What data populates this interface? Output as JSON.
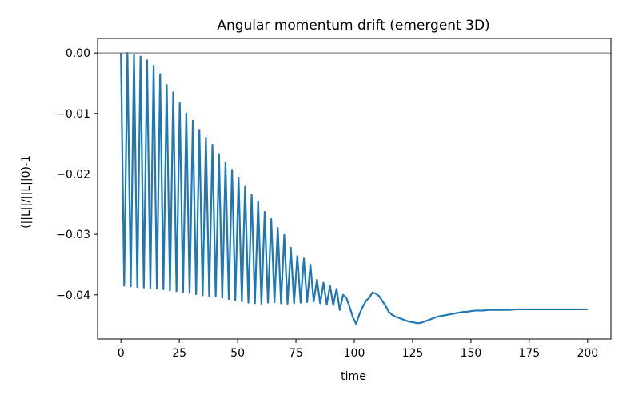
{
  "chart_data": {
    "type": "line",
    "title": "Angular momentum drift (emergent 3D)",
    "xlabel": "time",
    "ylabel": "(||L||/||L||0)-1",
    "xlim": [
      -10,
      210
    ],
    "ylim": [
      -0.0473,
      0.0024
    ],
    "xticks": [
      0,
      25,
      50,
      75,
      100,
      125,
      150,
      175,
      200
    ],
    "xtick_labels": [
      "0",
      "25",
      "50",
      "75",
      "100",
      "125",
      "150",
      "175",
      "200"
    ],
    "yticks": [
      0.0,
      -0.01,
      -0.02,
      -0.03,
      -0.04
    ],
    "ytick_labels": [
      "0.00",
      "−0.01",
      "−0.02",
      "−0.03",
      "−0.04"
    ],
    "reference_line": {
      "y": 0.0,
      "color": "#808080"
    },
    "grid": false,
    "series": [
      {
        "color": "#1f77b4",
        "x": [
          0,
          1.4,
          2.8,
          4.2,
          5.6,
          7.0,
          8.4,
          9.8,
          11.2,
          12.6,
          14.0,
          15.4,
          16.8,
          18.2,
          19.6,
          21.0,
          22.4,
          23.8,
          25.2,
          26.6,
          28.0,
          29.4,
          30.8,
          32.2,
          33.6,
          35.0,
          36.4,
          37.8,
          39.2,
          40.6,
          42.0,
          43.4,
          44.8,
          46.2,
          47.6,
          49.0,
          50.4,
          51.8,
          53.2,
          54.6,
          56.0,
          57.4,
          58.8,
          60.2,
          61.6,
          63.0,
          64.4,
          65.8,
          67.2,
          68.6,
          70.0,
          71.4,
          72.8,
          74.2,
          75.6,
          77.0,
          78.4,
          79.8,
          81.2,
          82.6,
          84.0,
          85.4,
          86.8,
          88.2,
          89.6,
          91.0,
          92.4,
          93.8,
          95.2,
          96.6,
          98.0,
          99.4,
          100.8,
          102.2,
          103.6,
          105.0,
          106.4,
          107.8,
          109.2,
          110.6,
          112.0,
          113.4,
          114.8,
          116.2,
          117.6,
          119.0,
          120.4,
          121.8,
          123.2,
          124.6,
          126.0,
          127.4,
          128.8,
          130.2,
          131.6,
          133.0,
          134.4,
          135.8,
          137.2,
          138.6,
          140.0,
          141.4,
          142.8,
          144.2,
          145.6,
          147.0,
          148.4,
          149.8,
          152,
          155,
          158,
          162,
          166,
          170,
          175,
          180,
          185,
          190,
          195,
          200
        ],
        "y": [
          0.0,
          -0.0385,
          0.0,
          -0.0386,
          -0.0003,
          -0.0387,
          -0.0006,
          -0.0388,
          -0.0012,
          -0.0389,
          -0.0021,
          -0.039,
          -0.0035,
          -0.0391,
          -0.0053,
          -0.0393,
          -0.0065,
          -0.0394,
          -0.0083,
          -0.0396,
          -0.01,
          -0.0397,
          -0.0112,
          -0.0399,
          -0.0127,
          -0.0401,
          -0.014,
          -0.0402,
          -0.0152,
          -0.0403,
          -0.0167,
          -0.0405,
          -0.0181,
          -0.0407,
          -0.0193,
          -0.0409,
          -0.0206,
          -0.0411,
          -0.022,
          -0.0413,
          -0.0234,
          -0.0414,
          -0.0246,
          -0.0415,
          -0.0263,
          -0.0413,
          -0.0275,
          -0.0412,
          -0.0289,
          -0.0414,
          -0.0301,
          -0.0415,
          -0.0322,
          -0.0414,
          -0.0336,
          -0.0413,
          -0.034,
          -0.0412,
          -0.035,
          -0.0411,
          -0.0375,
          -0.0414,
          -0.038,
          -0.0416,
          -0.0385,
          -0.0417,
          -0.039,
          -0.0425,
          -0.04,
          -0.0405,
          -0.042,
          -0.0437,
          -0.0448,
          -0.0432,
          -0.042,
          -0.041,
          -0.0405,
          -0.0396,
          -0.0398,
          -0.0402,
          -0.041,
          -0.0418,
          -0.0428,
          -0.0433,
          -0.0436,
          -0.0438,
          -0.044,
          -0.0442,
          -0.0444,
          -0.0445,
          -0.0446,
          -0.0447,
          -0.0446,
          -0.0444,
          -0.0442,
          -0.044,
          -0.0438,
          -0.0436,
          -0.0435,
          -0.0434,
          -0.0433,
          -0.0432,
          -0.0431,
          -0.043,
          -0.0429,
          -0.0428,
          -0.0428,
          -0.0427,
          -0.0426,
          -0.0426,
          -0.0425,
          -0.0425,
          -0.0425,
          -0.0424,
          -0.0424,
          -0.0424,
          -0.0424,
          -0.0424,
          -0.0424,
          -0.0424
        ]
      }
    ]
  }
}
